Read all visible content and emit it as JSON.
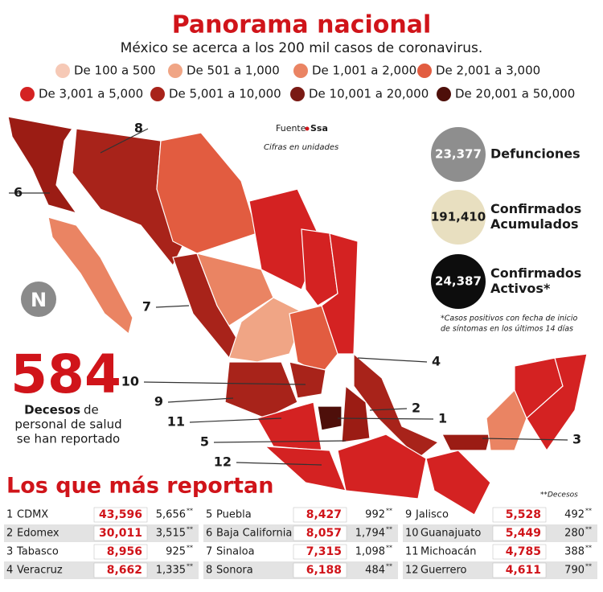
{
  "header": {
    "title": "Panorama nacional",
    "subtitle": "México se acerca a los 200 mil casos de coronavirus."
  },
  "legend": [
    {
      "label": "De 100 a 500",
      "color": "#f6c9b6"
    },
    {
      "label": "De 501 a 1,000",
      "color": "#f0a585"
    },
    {
      "label": "De 1,001 a 2,000",
      "color": "#ea8463"
    },
    {
      "label": "De 2,001 a 3,000",
      "color": "#e25c40"
    },
    {
      "label": "De 3,001 a 5,000",
      "color": "#d42222"
    },
    {
      "label": "De 5,001 a 10,000",
      "color": "#a8231a"
    },
    {
      "label": "De 10,001 a 20,000",
      "color": "#7a1a14"
    },
    {
      "label": "De 20,001 a 50,000",
      "color": "#4e0f0a"
    }
  ],
  "source": {
    "prefix": "Fuente",
    "name": "Ssa",
    "note": "Cifras en unidades"
  },
  "logo": "N",
  "callouts": [
    "8",
    "6",
    "7",
    "10",
    "9",
    "11",
    "5",
    "12",
    "4",
    "2",
    "1",
    "3"
  ],
  "stats": [
    {
      "value": "23,377",
      "label": "Defunciones"
    },
    {
      "value": "191,410",
      "label": "Confirmados Acumulados"
    },
    {
      "value": "24,387",
      "label": "Confirmados Activos*"
    }
  ],
  "stats_note": [
    "*Casos positivos con fecha de inicio",
    "de síntomas en los últimos 14 días"
  ],
  "health": {
    "number": "584",
    "bold": "Decesos",
    "rest": "de",
    "line2": "personal de salud",
    "line3": "se han reportado"
  },
  "table": {
    "title": "Los que más reportan",
    "note": "**Decesos",
    "marker": "**",
    "rows": [
      {
        "rank": "1",
        "state": "CDMX",
        "cases": "43,596",
        "deaths": "5,656"
      },
      {
        "rank": "2",
        "state": "Edomex",
        "cases": "30,011",
        "deaths": "3,515"
      },
      {
        "rank": "3",
        "state": "Tabasco",
        "cases": "8,956",
        "deaths": "925"
      },
      {
        "rank": "4",
        "state": "Veracruz",
        "cases": "8,662",
        "deaths": "1,335"
      },
      {
        "rank": "5",
        "state": "Puebla",
        "cases": "8,427",
        "deaths": "992"
      },
      {
        "rank": "6",
        "state": "Baja California",
        "cases": "8,057",
        "deaths": "1,794"
      },
      {
        "rank": "7",
        "state": "Sinaloa",
        "cases": "7,315",
        "deaths": "1,098"
      },
      {
        "rank": "8",
        "state": "Sonora",
        "cases": "6,188",
        "deaths": "484"
      },
      {
        "rank": "9",
        "state": "Jalisco",
        "cases": "5,528",
        "deaths": "492"
      },
      {
        "rank": "10",
        "state": "Guanajuato",
        "cases": "5,449",
        "deaths": "280"
      },
      {
        "rank": "11",
        "state": "Michoacán",
        "cases": "4,785",
        "deaths": "388"
      },
      {
        "rank": "12",
        "state": "Guerrero",
        "cases": "4,611",
        "deaths": "790"
      }
    ]
  }
}
